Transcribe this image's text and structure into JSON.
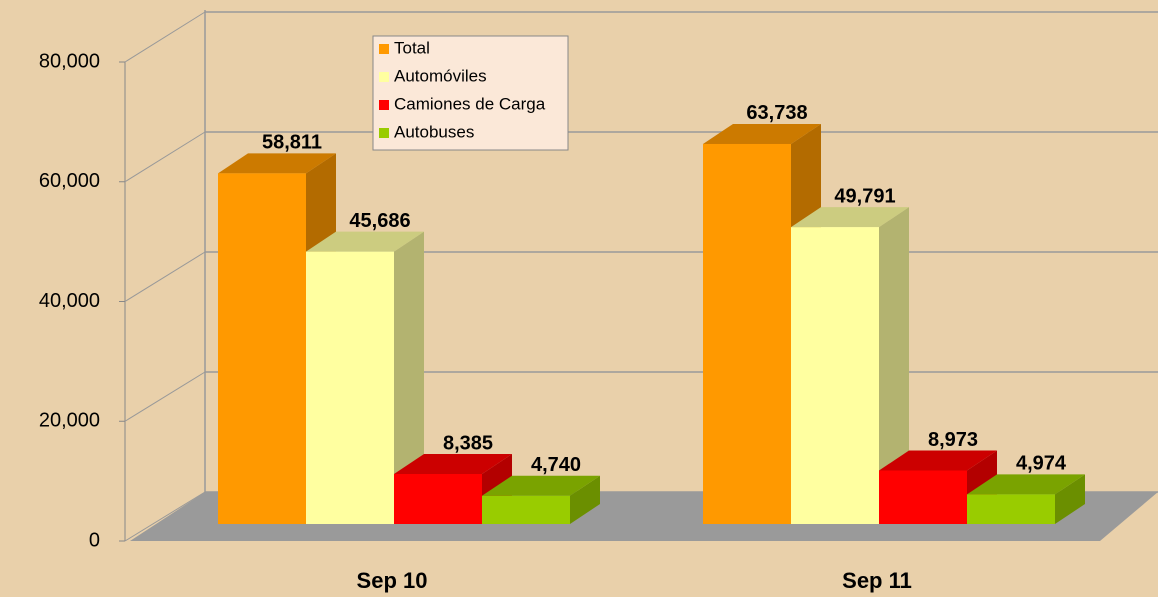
{
  "chart_data": {
    "type": "bar3d",
    "categories": [
      "Sep 10",
      "Sep 11"
    ],
    "series": [
      {
        "name": "Total",
        "color": "#ff9900",
        "values": [
          58811,
          63738
        ],
        "value_labels": [
          "58,811",
          "63,738"
        ]
      },
      {
        "name": "Automóviles",
        "color": "#ffffa0",
        "values": [
          45686,
          49791
        ],
        "value_labels": [
          "45,686",
          "49,791"
        ]
      },
      {
        "name": "Camiones de Carga",
        "color": "#ff0000",
        "values": [
          8385,
          8973
        ],
        "value_labels": [
          "8,385",
          "8,973"
        ]
      },
      {
        "name": "Autobuses",
        "color": "#99cc00",
        "values": [
          4740,
          4974
        ],
        "value_labels": [
          "4,740",
          "4,974"
        ]
      }
    ],
    "ylim": [
      0,
      80000
    ],
    "yticks": [
      0,
      {
        "value": 20000,
        "label": "20,000"
      },
      {
        "value": 40000,
        "label": "40,000"
      },
      {
        "value": 60000,
        "label": "60,000"
      },
      {
        "value": 80000,
        "label": "80,000"
      }
    ],
    "grid": true
  }
}
